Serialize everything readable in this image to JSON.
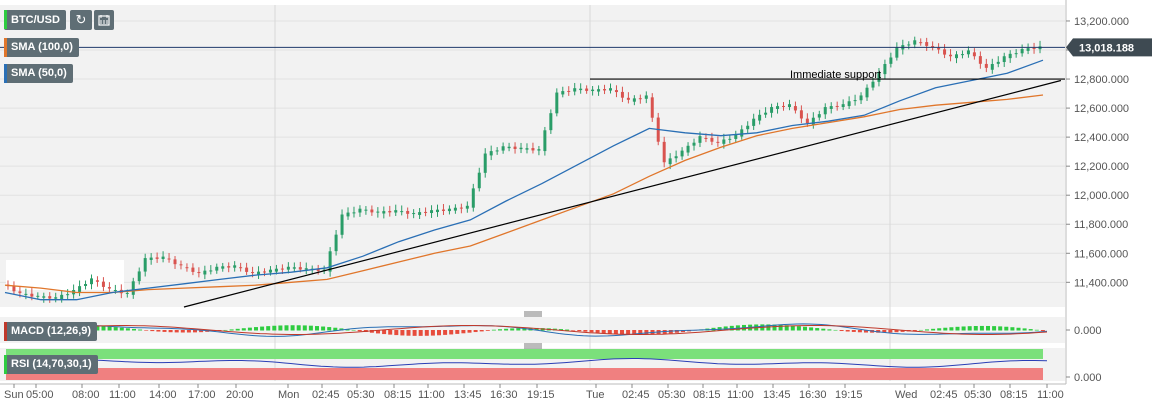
{
  "symbol": "BTC/USD",
  "toolbar": {
    "refresh_icon": "refresh-icon",
    "calendar_icon": "calendar-icon"
  },
  "legend": {
    "sma100": {
      "label": "SMA (100,0)",
      "color": "#e0762b"
    },
    "sma50": {
      "label": "SMA (50,0)",
      "color": "#2a6fb5"
    },
    "macd": {
      "label": "MACD (12,26,9)",
      "color": "#c0392b"
    },
    "rsi": {
      "label": "RSI (14,70,30,1)",
      "color": "#2ecc40"
    }
  },
  "price_tag": "13,018.188",
  "annotation": "Immediate support",
  "macd_tick": "0.000",
  "rsi_tick": "0.000",
  "colors": {
    "up": "#2a9d68",
    "down": "#d9534f",
    "panel_bg": "#f2f2f2",
    "axis": "#555555",
    "price_line": "#1f3a6b",
    "trend": "#000000",
    "grid": "#e2e2e2"
  },
  "chart_data": {
    "type": "line",
    "ylim": [
      11230,
      13310
    ],
    "yticks": [
      11400,
      11600,
      11800,
      12000,
      12200,
      12400,
      12600,
      12800,
      13000,
      13200
    ],
    "ytick_labels": [
      "11,400.000",
      "11,600.000",
      "11,800.000",
      "12,000.000",
      "12,200.000",
      "12,400.000",
      "12,600.000",
      "12,800.000",
      "13,000.000",
      "13,200.000"
    ],
    "xtick_labels": [
      "Sun",
      "05:00",
      "08:00",
      "11:00",
      "14:00",
      "17:00",
      "20:00",
      "Mon",
      "02:45",
      "05:30",
      "08:15",
      "11:00",
      "13:45",
      "16:30",
      "19:15",
      "Tue",
      "02:45",
      "05:30",
      "08:15",
      "11:00",
      "13:45",
      "16:30",
      "19:15",
      "Wed",
      "02:45",
      "05:30",
      "08:15",
      "11:00"
    ],
    "price_close": [
      {
        "x": 0,
        "y": 11390
      },
      {
        "x": 3,
        "y": 11320
      },
      {
        "x": 6,
        "y": 11300
      },
      {
        "x": 9,
        "y": 11290
      },
      {
        "x": 12,
        "y": 11340
      },
      {
        "x": 15,
        "y": 11420
      },
      {
        "x": 18,
        "y": 11350
      },
      {
        "x": 21,
        "y": 11320
      },
      {
        "x": 24,
        "y": 11560
      },
      {
        "x": 27,
        "y": 11570
      },
      {
        "x": 30,
        "y": 11510
      },
      {
        "x": 33,
        "y": 11460
      },
      {
        "x": 36,
        "y": 11500
      },
      {
        "x": 39,
        "y": 11510
      },
      {
        "x": 42,
        "y": 11460
      },
      {
        "x": 45,
        "y": 11480
      },
      {
        "x": 48,
        "y": 11500
      },
      {
        "x": 51,
        "y": 11490
      },
      {
        "x": 54,
        "y": 11480
      },
      {
        "x": 57,
        "y": 11860
      },
      {
        "x": 60,
        "y": 11900
      },
      {
        "x": 63,
        "y": 11880
      },
      {
        "x": 66,
        "y": 11890
      },
      {
        "x": 69,
        "y": 11870
      },
      {
        "x": 72,
        "y": 11890
      },
      {
        "x": 75,
        "y": 11900
      },
      {
        "x": 78,
        "y": 11920
      },
      {
        "x": 81,
        "y": 12280
      },
      {
        "x": 84,
        "y": 12330
      },
      {
        "x": 87,
        "y": 12320
      },
      {
        "x": 90,
        "y": 12310
      },
      {
        "x": 93,
        "y": 12700
      },
      {
        "x": 96,
        "y": 12730
      },
      {
        "x": 99,
        "y": 12720
      },
      {
        "x": 102,
        "y": 12730
      },
      {
        "x": 105,
        "y": 12650
      },
      {
        "x": 108,
        "y": 12680
      },
      {
        "x": 111,
        "y": 12220
      },
      {
        "x": 114,
        "y": 12300
      },
      {
        "x": 117,
        "y": 12400
      },
      {
        "x": 120,
        "y": 12360
      },
      {
        "x": 123,
        "y": 12410
      },
      {
        "x": 126,
        "y": 12520
      },
      {
        "x": 129,
        "y": 12600
      },
      {
        "x": 132,
        "y": 12620
      },
      {
        "x": 135,
        "y": 12490
      },
      {
        "x": 138,
        "y": 12600
      },
      {
        "x": 141,
        "y": 12620
      },
      {
        "x": 144,
        "y": 12680
      },
      {
        "x": 147,
        "y": 12840
      },
      {
        "x": 150,
        "y": 13010
      },
      {
        "x": 153,
        "y": 13060
      },
      {
        "x": 156,
        "y": 13020
      },
      {
        "x": 159,
        "y": 12950
      },
      {
        "x": 162,
        "y": 12990
      },
      {
        "x": 165,
        "y": 12870
      },
      {
        "x": 168,
        "y": 12950
      },
      {
        "x": 171,
        "y": 13000
      },
      {
        "x": 174,
        "y": 13018
      }
    ],
    "sma50": [
      {
        "x": 0,
        "y": 11330
      },
      {
        "x": 6,
        "y": 11280
      },
      {
        "x": 12,
        "y": 11280
      },
      {
        "x": 18,
        "y": 11330
      },
      {
        "x": 24,
        "y": 11360
      },
      {
        "x": 30,
        "y": 11390
      },
      {
        "x": 36,
        "y": 11420
      },
      {
        "x": 42,
        "y": 11450
      },
      {
        "x": 48,
        "y": 11470
      },
      {
        "x": 54,
        "y": 11500
      },
      {
        "x": 60,
        "y": 11580
      },
      {
        "x": 66,
        "y": 11680
      },
      {
        "x": 72,
        "y": 11760
      },
      {
        "x": 78,
        "y": 11830
      },
      {
        "x": 84,
        "y": 11960
      },
      {
        "x": 90,
        "y": 12080
      },
      {
        "x": 96,
        "y": 12210
      },
      {
        "x": 102,
        "y": 12340
      },
      {
        "x": 108,
        "y": 12460
      },
      {
        "x": 114,
        "y": 12430
      },
      {
        "x": 120,
        "y": 12410
      },
      {
        "x": 126,
        "y": 12430
      },
      {
        "x": 132,
        "y": 12480
      },
      {
        "x": 138,
        "y": 12510
      },
      {
        "x": 144,
        "y": 12550
      },
      {
        "x": 150,
        "y": 12650
      },
      {
        "x": 156,
        "y": 12740
      },
      {
        "x": 162,
        "y": 12790
      },
      {
        "x": 168,
        "y": 12840
      },
      {
        "x": 174,
        "y": 12930
      }
    ],
    "sma100": [
      {
        "x": 0,
        "y": 11380
      },
      {
        "x": 6,
        "y": 11360
      },
      {
        "x": 12,
        "y": 11330
      },
      {
        "x": 18,
        "y": 11330
      },
      {
        "x": 24,
        "y": 11350
      },
      {
        "x": 30,
        "y": 11360
      },
      {
        "x": 36,
        "y": 11370
      },
      {
        "x": 42,
        "y": 11380
      },
      {
        "x": 48,
        "y": 11400
      },
      {
        "x": 54,
        "y": 11420
      },
      {
        "x": 60,
        "y": 11480
      },
      {
        "x": 66,
        "y": 11540
      },
      {
        "x": 72,
        "y": 11600
      },
      {
        "x": 78,
        "y": 11650
      },
      {
        "x": 84,
        "y": 11740
      },
      {
        "x": 90,
        "y": 11830
      },
      {
        "x": 96,
        "y": 11920
      },
      {
        "x": 102,
        "y": 12010
      },
      {
        "x": 108,
        "y": 12130
      },
      {
        "x": 114,
        "y": 12240
      },
      {
        "x": 120,
        "y": 12330
      },
      {
        "x": 126,
        "y": 12410
      },
      {
        "x": 132,
        "y": 12460
      },
      {
        "x": 138,
        "y": 12500
      },
      {
        "x": 144,
        "y": 12540
      },
      {
        "x": 150,
        "y": 12590
      },
      {
        "x": 156,
        "y": 12620
      },
      {
        "x": 162,
        "y": 12640
      },
      {
        "x": 168,
        "y": 12660
      },
      {
        "x": 174,
        "y": 12690
      }
    ],
    "trendline": [
      {
        "x": 30,
        "y": 11230
      },
      {
        "x": 177,
        "y": 12790
      }
    ],
    "support_level": 12800,
    "current_price": 13018.188
  }
}
